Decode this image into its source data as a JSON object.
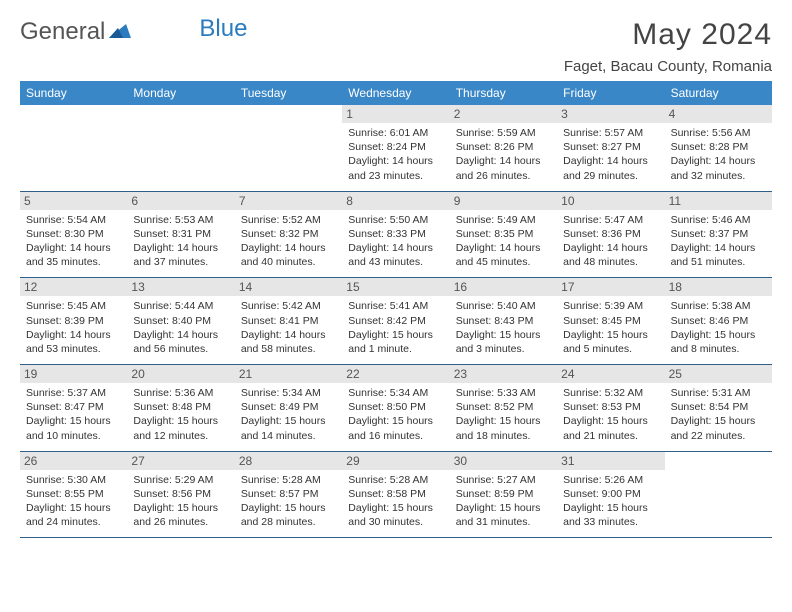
{
  "logo": {
    "textA": "General",
    "textB": "Blue"
  },
  "title": "May 2024",
  "location": "Faget, Bacau County, Romania",
  "colors": {
    "header_bg": "#3a87c8",
    "header_text": "#ffffff",
    "daynum_bg": "#e6e6e6",
    "row_border": "#2f5f8a",
    "logo_blue": "#2b7bbf"
  },
  "columns": [
    "Sunday",
    "Monday",
    "Tuesday",
    "Wednesday",
    "Thursday",
    "Friday",
    "Saturday"
  ],
  "weeks": [
    [
      {
        "n": "",
        "empty": true
      },
      {
        "n": "",
        "empty": true
      },
      {
        "n": "",
        "empty": true
      },
      {
        "n": "1",
        "sr": "6:01 AM",
        "ss": "8:24 PM",
        "dl": "14 hours and 23 minutes."
      },
      {
        "n": "2",
        "sr": "5:59 AM",
        "ss": "8:26 PM",
        "dl": "14 hours and 26 minutes."
      },
      {
        "n": "3",
        "sr": "5:57 AM",
        "ss": "8:27 PM",
        "dl": "14 hours and 29 minutes."
      },
      {
        "n": "4",
        "sr": "5:56 AM",
        "ss": "8:28 PM",
        "dl": "14 hours and 32 minutes."
      }
    ],
    [
      {
        "n": "5",
        "sr": "5:54 AM",
        "ss": "8:30 PM",
        "dl": "14 hours and 35 minutes."
      },
      {
        "n": "6",
        "sr": "5:53 AM",
        "ss": "8:31 PM",
        "dl": "14 hours and 37 minutes."
      },
      {
        "n": "7",
        "sr": "5:52 AM",
        "ss": "8:32 PM",
        "dl": "14 hours and 40 minutes."
      },
      {
        "n": "8",
        "sr": "5:50 AM",
        "ss": "8:33 PM",
        "dl": "14 hours and 43 minutes."
      },
      {
        "n": "9",
        "sr": "5:49 AM",
        "ss": "8:35 PM",
        "dl": "14 hours and 45 minutes."
      },
      {
        "n": "10",
        "sr": "5:47 AM",
        "ss": "8:36 PM",
        "dl": "14 hours and 48 minutes."
      },
      {
        "n": "11",
        "sr": "5:46 AM",
        "ss": "8:37 PM",
        "dl": "14 hours and 51 minutes."
      }
    ],
    [
      {
        "n": "12",
        "sr": "5:45 AM",
        "ss": "8:39 PM",
        "dl": "14 hours and 53 minutes."
      },
      {
        "n": "13",
        "sr": "5:44 AM",
        "ss": "8:40 PM",
        "dl": "14 hours and 56 minutes."
      },
      {
        "n": "14",
        "sr": "5:42 AM",
        "ss": "8:41 PM",
        "dl": "14 hours and 58 minutes."
      },
      {
        "n": "15",
        "sr": "5:41 AM",
        "ss": "8:42 PM",
        "dl": "15 hours and 1 minute."
      },
      {
        "n": "16",
        "sr": "5:40 AM",
        "ss": "8:43 PM",
        "dl": "15 hours and 3 minutes."
      },
      {
        "n": "17",
        "sr": "5:39 AM",
        "ss": "8:45 PM",
        "dl": "15 hours and 5 minutes."
      },
      {
        "n": "18",
        "sr": "5:38 AM",
        "ss": "8:46 PM",
        "dl": "15 hours and 8 minutes."
      }
    ],
    [
      {
        "n": "19",
        "sr": "5:37 AM",
        "ss": "8:47 PM",
        "dl": "15 hours and 10 minutes."
      },
      {
        "n": "20",
        "sr": "5:36 AM",
        "ss": "8:48 PM",
        "dl": "15 hours and 12 minutes."
      },
      {
        "n": "21",
        "sr": "5:34 AM",
        "ss": "8:49 PM",
        "dl": "15 hours and 14 minutes."
      },
      {
        "n": "22",
        "sr": "5:34 AM",
        "ss": "8:50 PM",
        "dl": "15 hours and 16 minutes."
      },
      {
        "n": "23",
        "sr": "5:33 AM",
        "ss": "8:52 PM",
        "dl": "15 hours and 18 minutes."
      },
      {
        "n": "24",
        "sr": "5:32 AM",
        "ss": "8:53 PM",
        "dl": "15 hours and 21 minutes."
      },
      {
        "n": "25",
        "sr": "5:31 AM",
        "ss": "8:54 PM",
        "dl": "15 hours and 22 minutes."
      }
    ],
    [
      {
        "n": "26",
        "sr": "5:30 AM",
        "ss": "8:55 PM",
        "dl": "15 hours and 24 minutes."
      },
      {
        "n": "27",
        "sr": "5:29 AM",
        "ss": "8:56 PM",
        "dl": "15 hours and 26 minutes."
      },
      {
        "n": "28",
        "sr": "5:28 AM",
        "ss": "8:57 PM",
        "dl": "15 hours and 28 minutes."
      },
      {
        "n": "29",
        "sr": "5:28 AM",
        "ss": "8:58 PM",
        "dl": "15 hours and 30 minutes."
      },
      {
        "n": "30",
        "sr": "5:27 AM",
        "ss": "8:59 PM",
        "dl": "15 hours and 31 minutes."
      },
      {
        "n": "31",
        "sr": "5:26 AM",
        "ss": "9:00 PM",
        "dl": "15 hours and 33 minutes."
      },
      {
        "n": "",
        "empty": true
      }
    ]
  ],
  "labels": {
    "sunrise": "Sunrise:",
    "sunset": "Sunset:",
    "daylight": "Daylight:"
  }
}
